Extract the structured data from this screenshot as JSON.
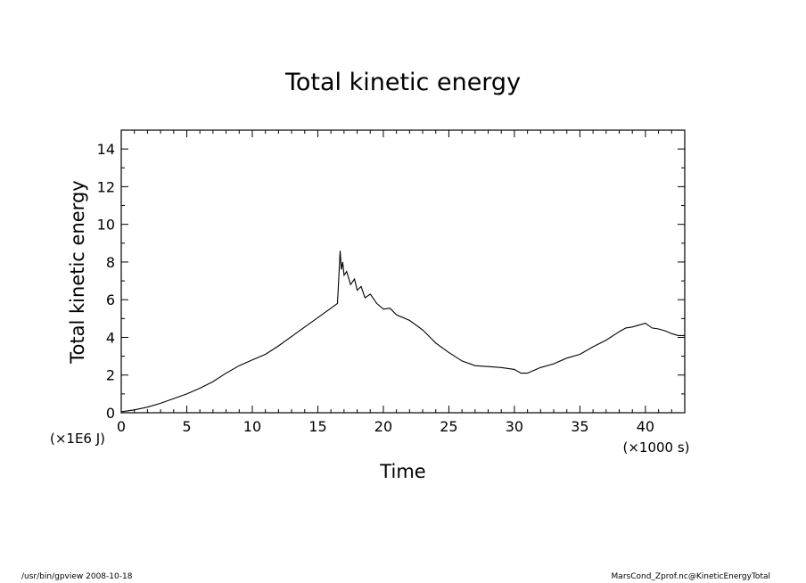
{
  "chart_data": {
    "type": "line",
    "title": "Total kinetic energy",
    "xlabel": "Time",
    "ylabel": "Total kinetic energy",
    "x_unit_label": "(×1000 s)",
    "y_unit_label": "(×1E6 J)",
    "xlim": [
      0,
      43
    ],
    "ylim": [
      0,
      15
    ],
    "x_ticks": [
      0,
      5,
      10,
      15,
      20,
      25,
      30,
      35,
      40
    ],
    "y_ticks": [
      0,
      2,
      4,
      6,
      8,
      10,
      12,
      14
    ],
    "grid": false,
    "series": [
      {
        "x": [
          0,
          1,
          2,
          3,
          4,
          5,
          6,
          7,
          8,
          9,
          10,
          11,
          12,
          13,
          14,
          15,
          16,
          16.5,
          16.7,
          16.8,
          16.9,
          17.0,
          17.2,
          17.5,
          17.8,
          18.0,
          18.3,
          18.6,
          19.0,
          19.5,
          20.0,
          20.5,
          21,
          22,
          23,
          24,
          25,
          26,
          27,
          28,
          29,
          30,
          30.5,
          31,
          31.5,
          32,
          33,
          34,
          35,
          36,
          37,
          38,
          38.5,
          39,
          39.5,
          40,
          40.5,
          41,
          41.5,
          42,
          42.5,
          43
        ],
        "values": [
          0.05,
          0.15,
          0.3,
          0.5,
          0.75,
          1.0,
          1.3,
          1.65,
          2.1,
          2.5,
          2.8,
          3.1,
          3.55,
          4.05,
          4.55,
          5.05,
          5.55,
          5.8,
          8.6,
          7.6,
          8.0,
          7.3,
          7.5,
          6.8,
          7.1,
          6.5,
          6.7,
          6.1,
          6.3,
          5.8,
          5.5,
          5.55,
          5.2,
          4.9,
          4.4,
          3.7,
          3.2,
          2.75,
          2.5,
          2.45,
          2.4,
          2.3,
          2.1,
          2.1,
          2.25,
          2.4,
          2.6,
          2.9,
          3.1,
          3.5,
          3.85,
          4.3,
          4.5,
          4.55,
          4.65,
          4.75,
          4.5,
          4.45,
          4.35,
          4.2,
          4.1,
          4.1
        ]
      }
    ]
  },
  "footer": {
    "left": "/usr/bin/gpview   2008-10-18",
    "right": "MarsCond_Zprof.nc@KineticEnergyTotal"
  }
}
